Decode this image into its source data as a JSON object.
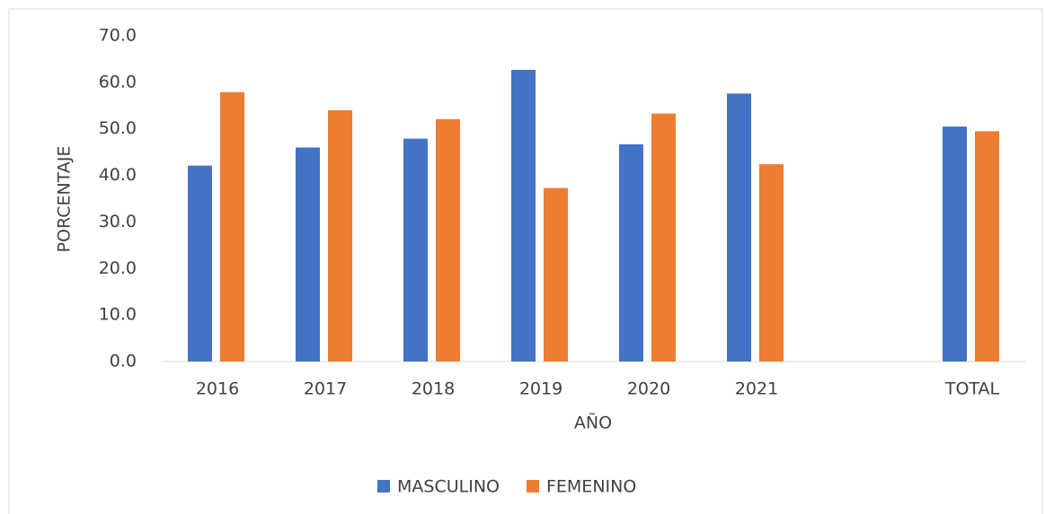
{
  "chart_data": {
    "type": "bar",
    "categories": [
      "2016",
      "2017",
      "2018",
      "2019",
      "2020",
      "2021",
      null,
      "TOTAL"
    ],
    "series": [
      {
        "name": "MASCULINO",
        "color": "#4472c4",
        "values": [
          42.1,
          46.0,
          47.9,
          62.7,
          46.7,
          57.6,
          null,
          50.5
        ]
      },
      {
        "name": "FEMENINO",
        "color": "#ed7d31",
        "values": [
          57.9,
          54.0,
          52.1,
          37.3,
          53.3,
          42.4,
          null,
          49.5
        ]
      }
    ],
    "xlabel": "AÑO",
    "ylabel": "PORCENTAJE",
    "ylim": [
      0,
      70
    ],
    "yticks": [
      {
        "value": 0,
        "label": "0.0"
      },
      {
        "value": 10,
        "label": "10.0"
      },
      {
        "value": 20,
        "label": "20.0"
      },
      {
        "value": 30,
        "label": "30.0"
      },
      {
        "value": 40,
        "label": "40.0"
      },
      {
        "value": 50,
        "label": "50.0"
      },
      {
        "value": 60,
        "label": "60.0"
      },
      {
        "value": 70,
        "label": "70.0"
      }
    ],
    "legend": "bottom"
  }
}
